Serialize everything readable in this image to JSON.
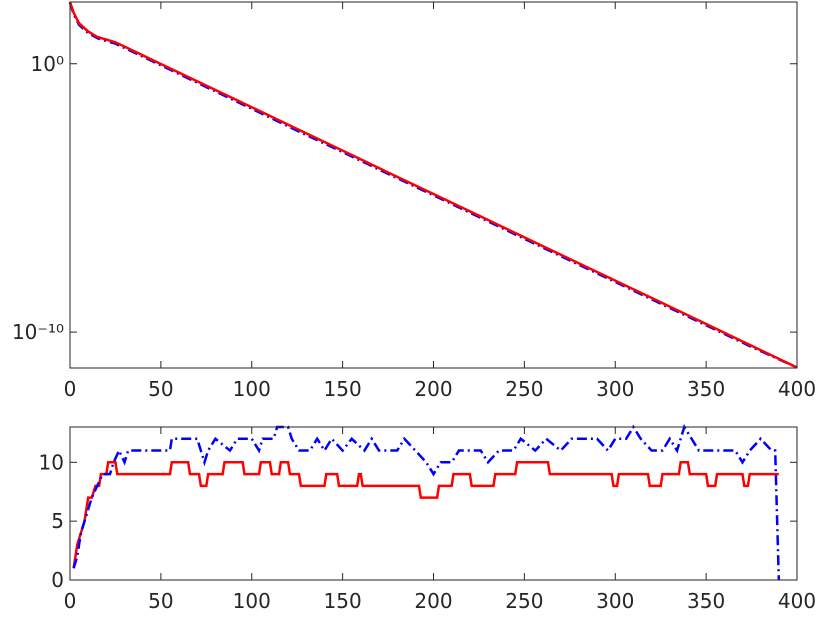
{
  "chart_data": [
    {
      "type": "line",
      "log_y": true,
      "xlim": [
        0,
        400
      ],
      "ylim": [
        4.6e-12,
        200
      ],
      "xticks": [
        0,
        50,
        100,
        150,
        200,
        250,
        300,
        350,
        400
      ],
      "yticks": [
        {
          "value": 1e-10,
          "label": "10⁻¹⁰"
        },
        {
          "value": 1,
          "label": "10⁰"
        }
      ],
      "series": [
        {
          "color": "#0000ff",
          "dash": "dash-dot",
          "x": [
            0,
            2,
            5,
            10,
            15,
            20,
            25,
            50,
            75,
            100,
            125,
            150,
            175,
            200,
            225,
            250,
            275,
            300,
            325,
            350,
            375,
            400
          ],
          "values": [
            190,
            70,
            28,
            14,
            9,
            7,
            5.6,
            0.88,
            0.135,
            0.021,
            0.0032,
            0.00051,
            7.9e-05,
            1.25e-05,
            1.95e-06,
            3e-07,
            4.7e-08,
            7.4e-09,
            1.15e-09,
            1.8e-10,
            2.8e-11,
            4.8e-12
          ]
        },
        {
          "color": "#ff0000",
          "dash": "solid",
          "x": [
            0,
            2,
            5,
            10,
            15,
            20,
            25,
            50,
            75,
            100,
            125,
            150,
            175,
            200,
            225,
            250,
            275,
            300,
            325,
            350,
            375,
            400
          ],
          "values": [
            200,
            80,
            32,
            16,
            10,
            8,
            6.3,
            0.98,
            0.153,
            0.024,
            0.0037,
            0.00058,
            8.9e-05,
            1.4e-05,
            2.2e-06,
            3.4e-07,
            5.3e-08,
            8.3e-09,
            1.3e-09,
            2e-10,
            3.1e-11,
            4.8e-12
          ]
        }
      ]
    },
    {
      "type": "line",
      "log_y": false,
      "xlim": [
        0,
        400
      ],
      "ylim": [
        0,
        13
      ],
      "xticks": [
        0,
        50,
        100,
        150,
        200,
        250,
        300,
        350,
        400
      ],
      "yticks": [
        0,
        5,
        10
      ],
      "series": [
        {
          "color": "#ff0000",
          "dash": "solid",
          "x": [
            2,
            4,
            6,
            8,
            10,
            12,
            14,
            16,
            17,
            20,
            21,
            25,
            26,
            55,
            56,
            65,
            66,
            71,
            72,
            75,
            76,
            84,
            85,
            95,
            96,
            104,
            105,
            110,
            111,
            115,
            116,
            120,
            121,
            126,
            127,
            140,
            141,
            147,
            148,
            158,
            159,
            160,
            161,
            192,
            193,
            202,
            203,
            210,
            211,
            220,
            221,
            233,
            234,
            245,
            246,
            263,
            264,
            298,
            299,
            301,
            302,
            318,
            319,
            325,
            326,
            335,
            336,
            340,
            341,
            350,
            351,
            355,
            356,
            370,
            371,
            373,
            374,
            390
          ],
          "values": [
            1,
            3,
            4,
            5,
            7,
            7,
            8,
            8,
            9,
            9,
            10,
            10,
            9,
            9,
            10,
            10,
            9,
            9,
            8,
            8,
            9,
            9,
            10,
            10,
            9,
            9,
            10,
            10,
            9,
            9,
            10,
            10,
            9,
            9,
            8,
            8,
            9,
            9,
            8,
            8,
            9,
            9,
            8,
            8,
            7,
            7,
            8,
            8,
            9,
            9,
            8,
            8,
            9,
            9,
            10,
            10,
            9,
            9,
            8,
            8,
            9,
            9,
            8,
            8,
            9,
            9,
            10,
            10,
            9,
            9,
            8,
            8,
            9,
            9,
            8,
            8,
            9,
            9
          ]
        },
        {
          "color": "#0000ff",
          "dash": "dash-dot",
          "x": [
            2,
            4,
            6,
            8,
            10,
            12,
            15,
            18,
            22,
            24,
            27,
            30,
            32,
            55,
            56,
            70,
            72,
            74,
            76,
            80,
            88,
            92,
            100,
            104,
            106,
            112,
            114,
            120,
            122,
            126,
            132,
            136,
            140,
            144,
            150,
            155,
            162,
            166,
            170,
            180,
            184,
            190,
            196,
            200,
            204,
            210,
            214,
            226,
            230,
            236,
            244,
            248,
            256,
            262,
            270,
            276,
            290,
            296,
            300,
            306,
            310,
            314,
            320,
            326,
            330,
            334,
            338,
            342,
            346,
            366,
            370,
            374,
            380,
            386,
            388,
            390
          ],
          "values": [
            1,
            2,
            4,
            5,
            6,
            7,
            8,
            9,
            9,
            10,
            11,
            10,
            11,
            11,
            12,
            12,
            11,
            10,
            11,
            12,
            11,
            12,
            12,
            11,
            12,
            12,
            13,
            13,
            12,
            11,
            11,
            12,
            11,
            12,
            11,
            12,
            11,
            12,
            11,
            11,
            12,
            11,
            10,
            9,
            10,
            10,
            11,
            11,
            10,
            11,
            11,
            12,
            11,
            12,
            11,
            12,
            12,
            11,
            12,
            12,
            13,
            12,
            11,
            11,
            12,
            11,
            13,
            12,
            11,
            11,
            10,
            11,
            12,
            11,
            11,
            0
          ]
        }
      ]
    }
  ]
}
